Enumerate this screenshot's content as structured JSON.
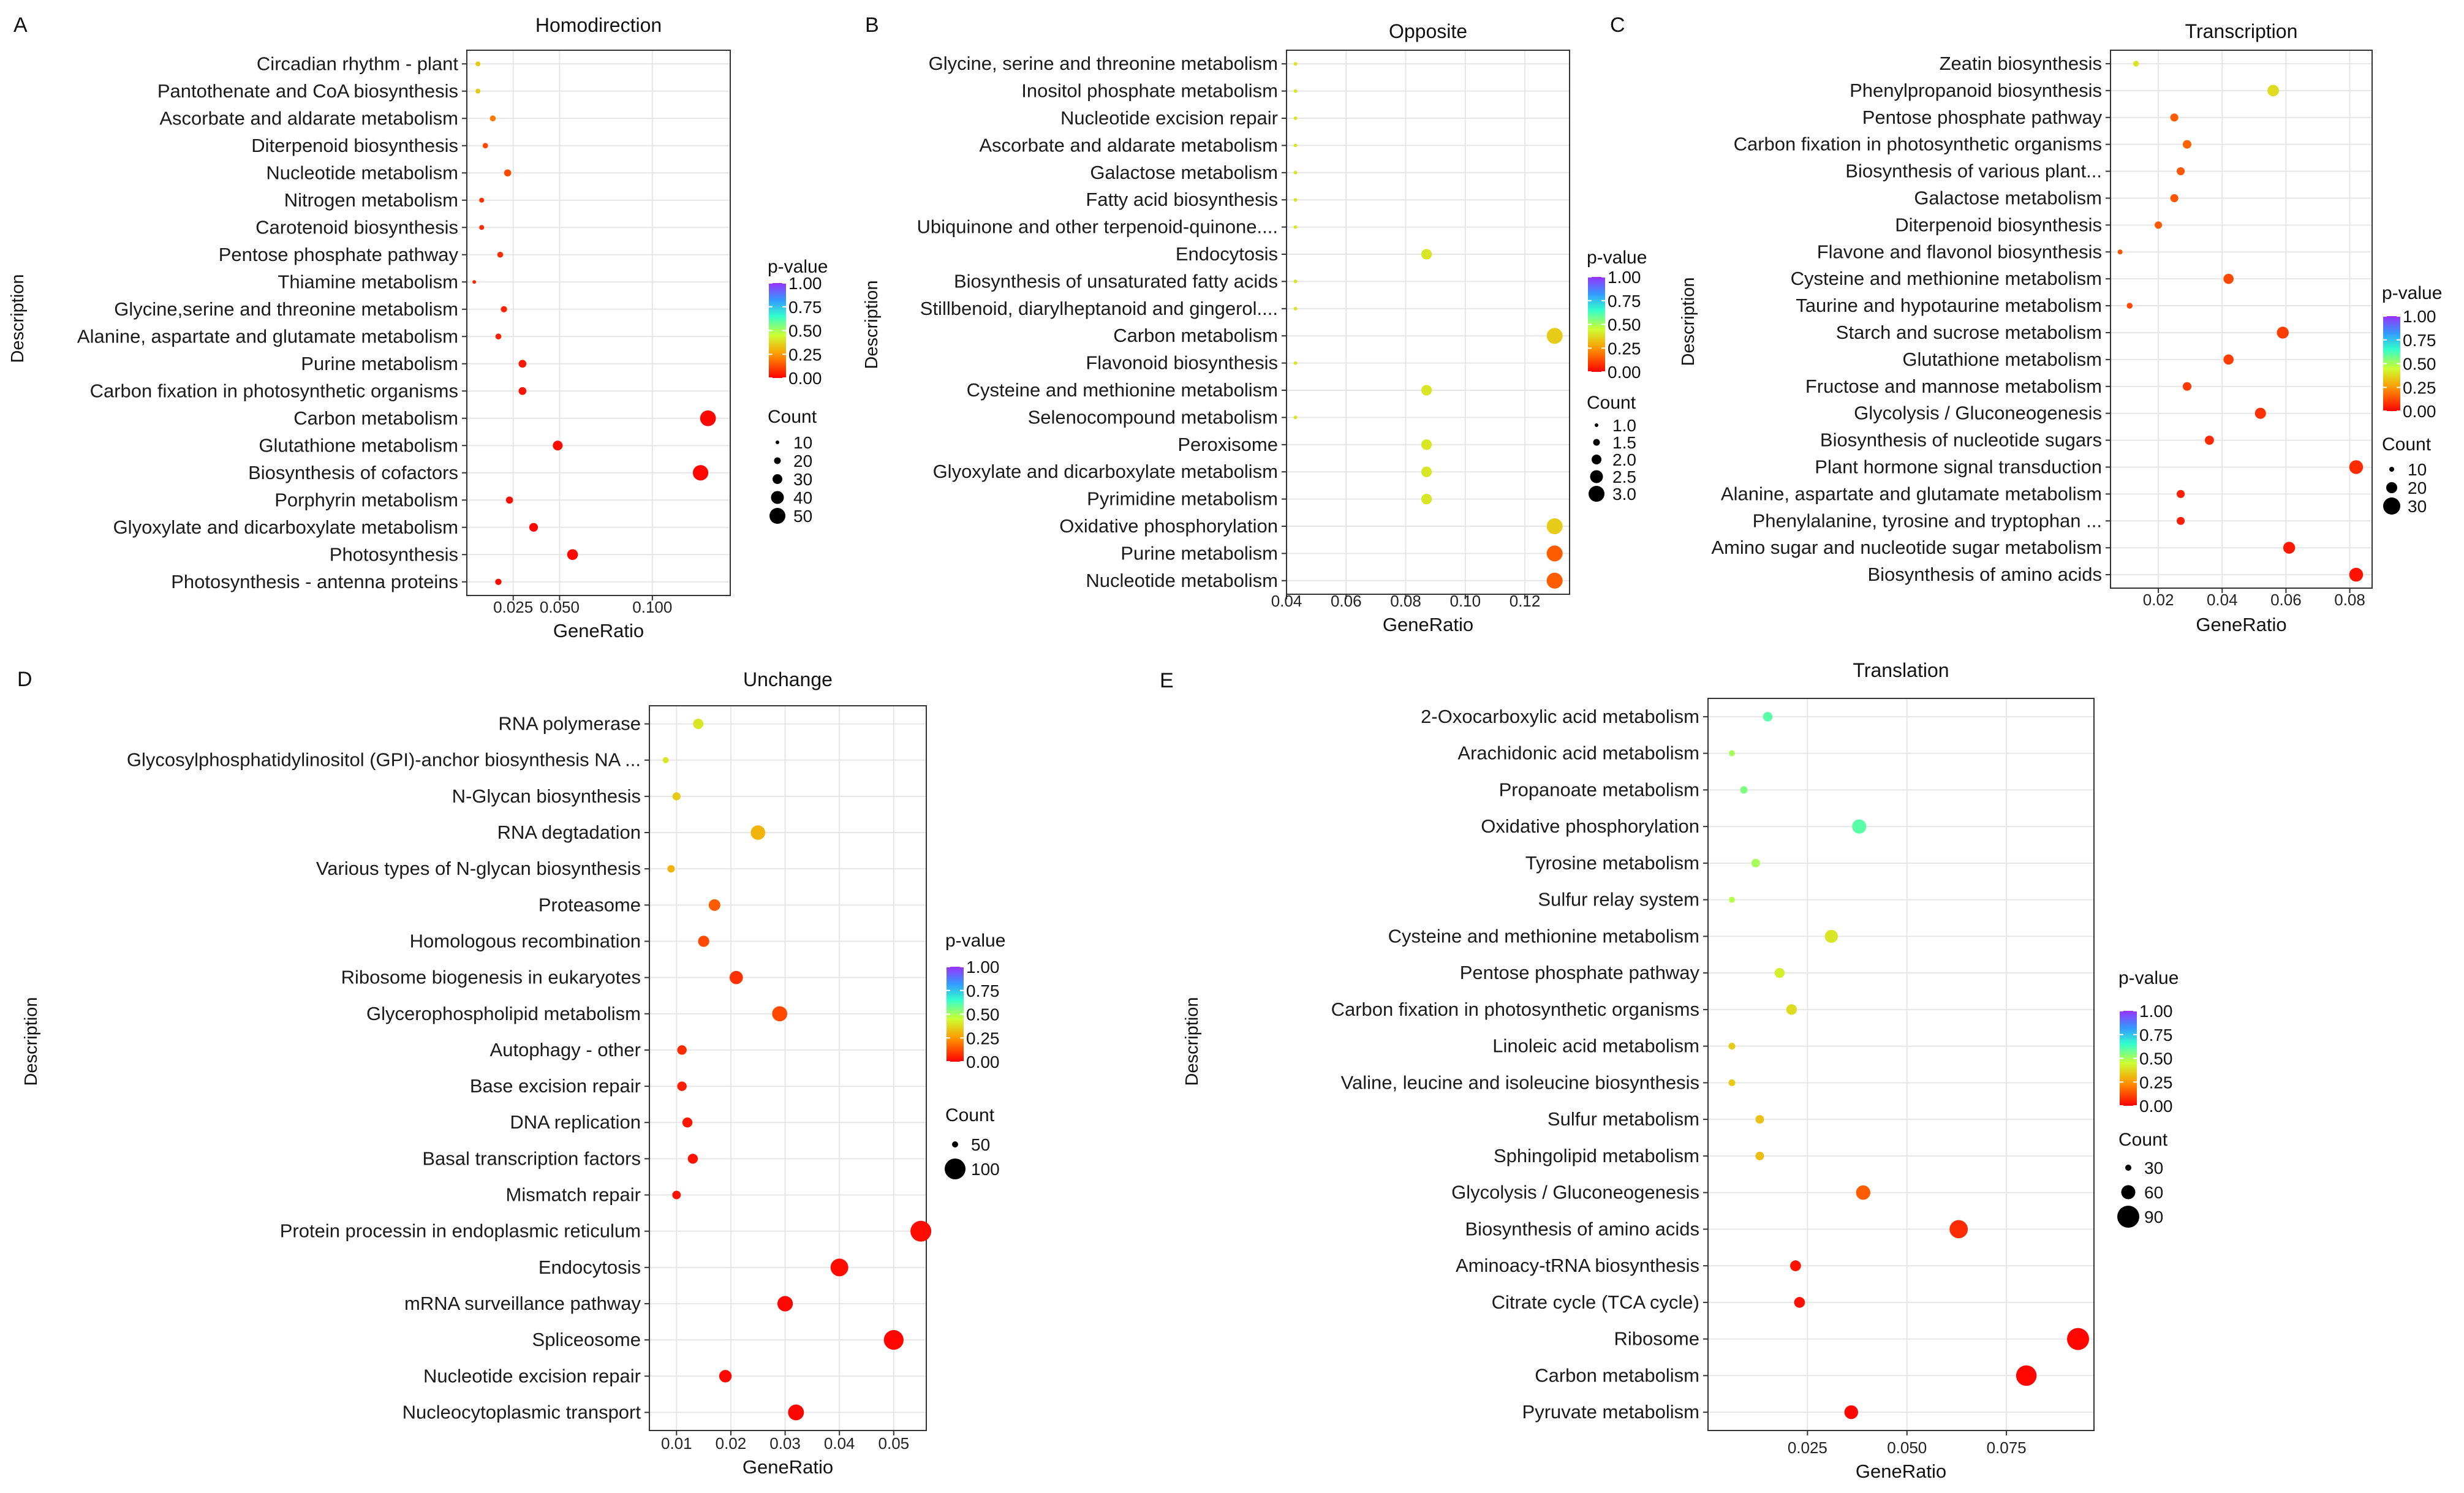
{
  "figure": {
    "panels": [
      {
        "id": "A",
        "title": "Homodirection",
        "xlabel": "GeneRatio",
        "ylabel": "Description"
      },
      {
        "id": "B",
        "title": "Opposite",
        "xlabel": "GeneRatio",
        "ylabel": "Description"
      },
      {
        "id": "C",
        "title": "Transcription",
        "xlabel": "GeneRatio",
        "ylabel": "Description"
      },
      {
        "id": "D",
        "title": "Unchange",
        "xlabel": "GeneRatio",
        "ylabel": "Description"
      },
      {
        "id": "E",
        "title": "Translation",
        "xlabel": "GeneRatio",
        "ylabel": "Description"
      }
    ]
  },
  "colors": {
    "low": "#ff0000",
    "mid1": "#ff8c00",
    "mid2": "#ccff33",
    "mid3": "#33ffcc",
    "high": "#8a2be2"
  },
  "chart_data": [
    {
      "id": "A",
      "type": "scatter",
      "title": "Homodirection",
      "xlabel": "GeneRatio",
      "ylabel": "Description",
      "xlim": [
        0,
        0.142
      ],
      "xticks": [
        0.025,
        0.05,
        0.1
      ],
      "xticklabels": [
        "0.025",
        "0.050",
        "0.100"
      ],
      "legend": {
        "color_title": "p-value",
        "color_ticks": [
          "1.00",
          "0.75",
          "0.50",
          "0.25",
          "0.00"
        ],
        "size_title": "Count",
        "size_ticks": [
          10,
          20,
          30,
          40,
          50
        ]
      },
      "points": [
        {
          "label": "Circadian rhythm - plant",
          "x": 0.006,
          "count": 4,
          "p": 0.35
        },
        {
          "label": "Pantothenate and CoA biosynthesis",
          "x": 0.006,
          "count": 4,
          "p": 0.35
        },
        {
          "label": "Ascorbate and aldarate metabolism",
          "x": 0.014,
          "count": 6,
          "p": 0.2
        },
        {
          "label": "Diterpenoid biosynthesis",
          "x": 0.01,
          "count": 5,
          "p": 0.12
        },
        {
          "label": "Nucleotide metabolism",
          "x": 0.022,
          "count": 9,
          "p": 0.12
        },
        {
          "label": "Nitrogen metabolism",
          "x": 0.008,
          "count": 4,
          "p": 0.08
        },
        {
          "label": "Carotenoid biosynthesis",
          "x": 0.008,
          "count": 4,
          "p": 0.07
        },
        {
          "label": "Pentose phosphate pathway",
          "x": 0.018,
          "count": 6,
          "p": 0.07
        },
        {
          "label": "Thiamine metabolism",
          "x": 0.004,
          "count": 2,
          "p": 0.06
        },
        {
          "label": "Glycine,serine and threonine metabolism",
          "x": 0.02,
          "count": 7,
          "p": 0.06
        },
        {
          "label": "Alanine, aspartate and glutamate metabolism",
          "x": 0.017,
          "count": 6,
          "p": 0.05
        },
        {
          "label": "Purine metabolism",
          "x": 0.03,
          "count": 11,
          "p": 0.04
        },
        {
          "label": "Carbon fixation in photosynthetic organisms",
          "x": 0.03,
          "count": 11,
          "p": 0.03
        },
        {
          "label": "Carbon metabolism",
          "x": 0.13,
          "count": 49,
          "p": 0.01
        },
        {
          "label": "Glutathione metabolism",
          "x": 0.049,
          "count": 18,
          "p": 0.02
        },
        {
          "label": "Biosynthesis of cofactors",
          "x": 0.126,
          "count": 47,
          "p": 0.01
        },
        {
          "label": "Porphyrin metabolism",
          "x": 0.023,
          "count": 9,
          "p": 0.02
        },
        {
          "label": "Glyoxylate and dicarboxylate metabolism",
          "x": 0.036,
          "count": 14,
          "p": 0.01
        },
        {
          "label": "Photosynthesis",
          "x": 0.057,
          "count": 22,
          "p": 0.01
        },
        {
          "label": "Photosynthesis - antenna proteins",
          "x": 0.017,
          "count": 7,
          "p": 0.01
        }
      ]
    },
    {
      "id": "B",
      "type": "scatter",
      "title": "Opposite",
      "xlabel": "GeneRatio",
      "ylabel": "Description",
      "xlim": [
        0.04,
        0.135
      ],
      "xticks": [
        0.04,
        0.06,
        0.08,
        0.1,
        0.12
      ],
      "xticklabels": [
        "0.04",
        "0.06",
        "0.08",
        "0.10",
        "0.12"
      ],
      "legend": {
        "color_title": "p-value",
        "color_ticks": [
          "1.00",
          "0.75",
          "0.50",
          "0.25",
          "0.00"
        ],
        "size_title": "Count",
        "size_ticks": [
          1.0,
          1.5,
          2.0,
          2.5,
          3.0
        ],
        "size_ticklabels": [
          "1.0",
          "1.5",
          "2.0",
          "2.5",
          "3.0"
        ]
      },
      "points": [
        {
          "label": "Glycine, serine and threonine metabolism",
          "x": 0.043,
          "count": 1,
          "p": 0.4
        },
        {
          "label": "Inositol phosphate metabolism",
          "x": 0.043,
          "count": 1,
          "p": 0.4
        },
        {
          "label": "Nucleotide excision repair",
          "x": 0.043,
          "count": 1,
          "p": 0.4
        },
        {
          "label": "Ascorbate and aldarate metabolism",
          "x": 0.043,
          "count": 1,
          "p": 0.4
        },
        {
          "label": "Galactose metabolism",
          "x": 0.043,
          "count": 1,
          "p": 0.4
        },
        {
          "label": "Fatty acid biosynthesis",
          "x": 0.043,
          "count": 1,
          "p": 0.4
        },
        {
          "label": "Ubiquinone and other terpenoid-quinone....",
          "x": 0.043,
          "count": 1,
          "p": 0.4
        },
        {
          "label": "Endocytosis",
          "x": 0.087,
          "count": 2,
          "p": 0.4
        },
        {
          "label": "Biosynthesis of unsaturated fatty acids",
          "x": 0.043,
          "count": 1,
          "p": 0.4
        },
        {
          "label": "Stillbenoid, diarylheptanoid and gingerol....",
          "x": 0.043,
          "count": 1,
          "p": 0.4
        },
        {
          "label": "Carbon metabolism",
          "x": 0.13,
          "count": 3,
          "p": 0.35
        },
        {
          "label": "Flavonoid biosynthesis",
          "x": 0.043,
          "count": 1,
          "p": 0.4
        },
        {
          "label": "Cysteine and methionine metabolism",
          "x": 0.087,
          "count": 2,
          "p": 0.4
        },
        {
          "label": "Selenocompound metabolism",
          "x": 0.043,
          "count": 1,
          "p": 0.4
        },
        {
          "label": "Peroxisome",
          "x": 0.087,
          "count": 2,
          "p": 0.4
        },
        {
          "label": "Glyoxylate and dicarboxylate metabolism",
          "x": 0.087,
          "count": 2,
          "p": 0.4
        },
        {
          "label": "Pyrimidine metabolism",
          "x": 0.087,
          "count": 2,
          "p": 0.4
        },
        {
          "label": "Oxidative phosphorylation",
          "x": 0.13,
          "count": 3,
          "p": 0.35
        },
        {
          "label": "Purine metabolism",
          "x": 0.13,
          "count": 3,
          "p": 0.15
        },
        {
          "label": "Nucleotide metabolism",
          "x": 0.13,
          "count": 3,
          "p": 0.15
        }
      ]
    },
    {
      "id": "C",
      "type": "scatter",
      "title": "Transcription",
      "xlabel": "GeneRatio",
      "ylabel": "Description",
      "xlim": [
        0.005,
        0.087
      ],
      "xticks": [
        0.02,
        0.04,
        0.06,
        0.08
      ],
      "xticklabels": [
        "0.02",
        "0.04",
        "0.06",
        "0.08"
      ],
      "legend": {
        "color_title": "p-value",
        "color_ticks": [
          "1.00",
          "0.75",
          "0.50",
          "0.25",
          "0.00"
        ],
        "size_title": "Count",
        "size_ticks": [
          10,
          20,
          30
        ]
      },
      "points": [
        {
          "label": "Zeatin biosynthesis",
          "x": 0.013,
          "count": 3,
          "p": 0.4
        },
        {
          "label": "Phenylpropanoid biosynthesis",
          "x": 0.056,
          "count": 13,
          "p": 0.38
        },
        {
          "label": "Pentose phosphate pathway",
          "x": 0.025,
          "count": 6,
          "p": 0.15
        },
        {
          "label": "Carbon fixation in photosynthetic organisms",
          "x": 0.029,
          "count": 7,
          "p": 0.16
        },
        {
          "label": "Biosynthesis of various plant...",
          "x": 0.027,
          "count": 6,
          "p": 0.14
        },
        {
          "label": "Galactose metabolism",
          "x": 0.025,
          "count": 6,
          "p": 0.14
        },
        {
          "label": "Diterpenoid biosynthesis",
          "x": 0.02,
          "count": 5,
          "p": 0.14
        },
        {
          "label": "Flavone and flavonol biosynthesis",
          "x": 0.008,
          "count": 2,
          "p": 0.14
        },
        {
          "label": "Cysteine and methionine metabolism",
          "x": 0.042,
          "count": 10,
          "p": 0.12
        },
        {
          "label": "Taurine and hypotaurine metabolism",
          "x": 0.011,
          "count": 3,
          "p": 0.12
        },
        {
          "label": "Starch and sucrose metabolism",
          "x": 0.059,
          "count": 14,
          "p": 0.1
        },
        {
          "label": "Glutathione metabolism",
          "x": 0.042,
          "count": 10,
          "p": 0.1
        },
        {
          "label": "Fructose and mannose metabolism",
          "x": 0.029,
          "count": 7,
          "p": 0.09
        },
        {
          "label": "Glycolysis / Gluconeogenesis",
          "x": 0.052,
          "count": 12,
          "p": 0.08
        },
        {
          "label": "Biosynthesis of nucleotide sugars",
          "x": 0.036,
          "count": 8,
          "p": 0.07
        },
        {
          "label": "Plant hormone signal transduction",
          "x": 0.082,
          "count": 19,
          "p": 0.07
        },
        {
          "label": "Alanine, aspartate and glutamate metabolism",
          "x": 0.027,
          "count": 6,
          "p": 0.05
        },
        {
          "label": "Phenylalanine, tyrosine and tryptophan ...",
          "x": 0.027,
          "count": 6,
          "p": 0.05
        },
        {
          "label": "Amino sugar and nucleotide sugar metabolism",
          "x": 0.061,
          "count": 14,
          "p": 0.04
        },
        {
          "label": "Biosynthesis of amino acids",
          "x": 0.082,
          "count": 19,
          "p": 0.03
        }
      ]
    },
    {
      "id": "D",
      "type": "scatter",
      "title": "Unchange",
      "xlabel": "GeneRatio",
      "ylabel": "Description",
      "xlim": [
        0.005,
        0.056
      ],
      "xticks": [
        0.01,
        0.02,
        0.03,
        0.04,
        0.05
      ],
      "xticklabels": [
        "0.01",
        "0.02",
        "0.03",
        "0.04",
        "0.05"
      ],
      "legend": {
        "color_title": "p-value",
        "color_ticks": [
          "1.00",
          "0.75",
          "0.50",
          "0.25",
          "0.00"
        ],
        "size_title": "Count",
        "size_ticks": [
          50,
          100
        ]
      },
      "points": [
        {
          "label": "RNA polymerase",
          "x": 0.014,
          "count": 30,
          "p": 0.4
        },
        {
          "label": "Glycosylphosphatidylinositol (GPI)-anchor biosynthesis NA ...",
          "x": 0.008,
          "count": 10,
          "p": 0.4
        },
        {
          "label": "N-Glycan biosynthesis",
          "x": 0.01,
          "count": 18,
          "p": 0.35
        },
        {
          "label": "RNA degtadation",
          "x": 0.025,
          "count": 60,
          "p": 0.3
        },
        {
          "label": "Various types of N-glycan biosynthesis",
          "x": 0.009,
          "count": 15,
          "p": 0.3
        },
        {
          "label": "Proteasome",
          "x": 0.017,
          "count": 38,
          "p": 0.15
        },
        {
          "label": "Homologous recombination",
          "x": 0.015,
          "count": 35,
          "p": 0.12
        },
        {
          "label": "Ribosome biogenesis in eukaryotes",
          "x": 0.021,
          "count": 50,
          "p": 0.08
        },
        {
          "label": "Glycerophospholipid metabolism",
          "x": 0.029,
          "count": 65,
          "p": 0.12
        },
        {
          "label": "Autophagy - other",
          "x": 0.011,
          "count": 25,
          "p": 0.07
        },
        {
          "label": "Base excision repair",
          "x": 0.011,
          "count": 25,
          "p": 0.05
        },
        {
          "label": "DNA replication",
          "x": 0.012,
          "count": 28,
          "p": 0.04
        },
        {
          "label": "Basal transcription factors",
          "x": 0.013,
          "count": 28,
          "p": 0.03
        },
        {
          "label": "Mismatch repair",
          "x": 0.01,
          "count": 20,
          "p": 0.03
        },
        {
          "label": "Protein processin in endoplasmic reticulum",
          "x": 0.055,
          "count": 125,
          "p": 0.02
        },
        {
          "label": "Endocytosis",
          "x": 0.04,
          "count": 90,
          "p": 0.02
        },
        {
          "label": "mRNA surveillance pathway",
          "x": 0.03,
          "count": 68,
          "p": 0.01
        },
        {
          "label": "Spliceosome",
          "x": 0.05,
          "count": 112,
          "p": 0.01
        },
        {
          "label": "Nucleotide excision repair",
          "x": 0.019,
          "count": 44,
          "p": 0.01
        },
        {
          "label": "Nucleocytoplasmic transport",
          "x": 0.032,
          "count": 72,
          "p": 0.01
        }
      ]
    },
    {
      "id": "E",
      "type": "scatter",
      "title": "Translation",
      "xlabel": "GeneRatio",
      "ylabel": "Description",
      "xlim": [
        0.0,
        0.097
      ],
      "xticks": [
        0.025,
        0.05,
        0.075
      ],
      "xticklabels": [
        "0.025",
        "0.050",
        "0.075"
      ],
      "legend": {
        "color_title": "p-value",
        "color_ticks": [
          "1.00",
          "0.75",
          "0.50",
          "0.25",
          "0.00"
        ],
        "size_title": "Count",
        "size_ticks": [
          30,
          60,
          90
        ]
      },
      "points": [
        {
          "label": "2-Oxocarboxylic acid metabolism",
          "x": 0.015,
          "count": 20,
          "p": 0.6
        },
        {
          "label": "Arachidonic acid metabolism",
          "x": 0.006,
          "count": 8,
          "p": 0.5
        },
        {
          "label": "Propanoate metabolism",
          "x": 0.009,
          "count": 12,
          "p": 0.55
        },
        {
          "label": "Oxidative phosphorylation",
          "x": 0.038,
          "count": 45,
          "p": 0.6
        },
        {
          "label": "Tyrosine metabolism",
          "x": 0.012,
          "count": 16,
          "p": 0.5
        },
        {
          "label": "Sulfur relay system",
          "x": 0.006,
          "count": 8,
          "p": 0.48
        },
        {
          "label": "Cysteine and methionine metabolism",
          "x": 0.031,
          "count": 38,
          "p": 0.4
        },
        {
          "label": "Pentose phosphate pathway",
          "x": 0.018,
          "count": 22,
          "p": 0.42
        },
        {
          "label": "Carbon fixation in photosynthetic organisms",
          "x": 0.021,
          "count": 25,
          "p": 0.38
        },
        {
          "label": "Linoleic acid metabolism",
          "x": 0.006,
          "count": 10,
          "p": 0.35
        },
        {
          "label": "Valine, leucine and isoleucine biosynthesis",
          "x": 0.006,
          "count": 10,
          "p": 0.35
        },
        {
          "label": "Sulfur metabolism",
          "x": 0.013,
          "count": 16,
          "p": 0.33
        },
        {
          "label": "Sphingolipid metabolism",
          "x": 0.013,
          "count": 16,
          "p": 0.32
        },
        {
          "label": "Glycolysis / Gluconeogenesis",
          "x": 0.039,
          "count": 46,
          "p": 0.15
        },
        {
          "label": "Biosynthesis of amino acids",
          "x": 0.063,
          "count": 75,
          "p": 0.07
        },
        {
          "label": "Aminoacy-tRNA biosynthesis",
          "x": 0.022,
          "count": 26,
          "p": 0.03
        },
        {
          "label": "Citrate cycle (TCA cycle)",
          "x": 0.023,
          "count": 26,
          "p": 0.03
        },
        {
          "label": "Ribosome",
          "x": 0.093,
          "count": 110,
          "p": 0.01
        },
        {
          "label": "Carbon metabolism",
          "x": 0.08,
          "count": 95,
          "p": 0.01
        },
        {
          "label": "Pyruvate metabolism",
          "x": 0.036,
          "count": 42,
          "p": 0.01
        }
      ]
    }
  ]
}
